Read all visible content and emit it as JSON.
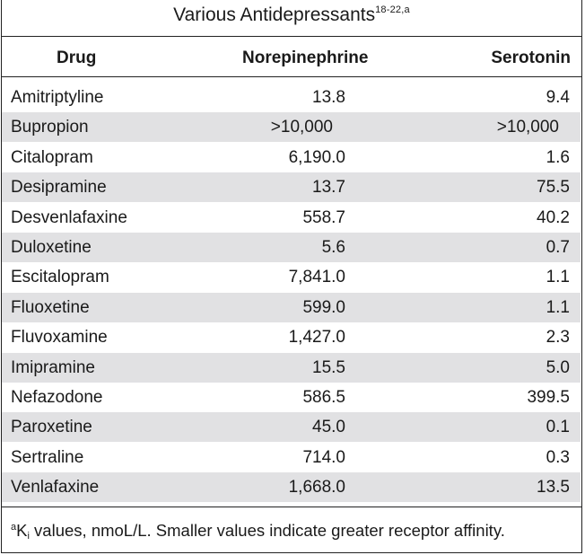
{
  "title": {
    "line2": "Various Antidepressants",
    "line2_refs": "18-22,a"
  },
  "headers": [
    "Drug",
    "Norepinephrine",
    "Serotonin"
  ],
  "rows": [
    {
      "drug": "Amitriptyline",
      "norepinephrine": "13.8",
      "serotonin": "9.4"
    },
    {
      "drug": "Bupropion",
      "norepinephrine": ">10,000",
      "serotonin": ">10,000"
    },
    {
      "drug": "Citalopram",
      "norepinephrine": "6,190.0",
      "serotonin": "1.6"
    },
    {
      "drug": "Desipramine",
      "norepinephrine": "13.7",
      "serotonin": "75.5"
    },
    {
      "drug": "Desvenlafaxine",
      "norepinephrine": "558.7",
      "serotonin": "40.2"
    },
    {
      "drug": "Duloxetine",
      "norepinephrine": "5.6",
      "serotonin": "0.7"
    },
    {
      "drug": "Escitalopram",
      "norepinephrine": "7,841.0",
      "serotonin": "1.1"
    },
    {
      "drug": "Fluoxetine",
      "norepinephrine": "599.0",
      "serotonin": "1.1"
    },
    {
      "drug": "Fluvoxamine",
      "norepinephrine": "1,427.0",
      "serotonin": "2.3"
    },
    {
      "drug": "Imipramine",
      "norepinephrine": "15.5",
      "serotonin": "5.0"
    },
    {
      "drug": "Nefazodone",
      "norepinephrine": "586.5",
      "serotonin": "399.5"
    },
    {
      "drug": "Paroxetine",
      "norepinephrine": "45.0",
      "serotonin": "0.1"
    },
    {
      "drug": "Sertraline",
      "norepinephrine": "714.0",
      "serotonin": "0.3"
    },
    {
      "drug": "Venlafaxine",
      "norepinephrine": "1,668.0",
      "serotonin": "13.5"
    }
  ],
  "footnote": {
    "marker": "a",
    "k": "K",
    "k_sub": "i",
    "text": " values, nmoL/L. Smaller values indicate greater receptor affinity."
  },
  "colors": {
    "shaded_row": "#e1e1e3",
    "rule": "#222222",
    "text": "#1a1a1a"
  }
}
